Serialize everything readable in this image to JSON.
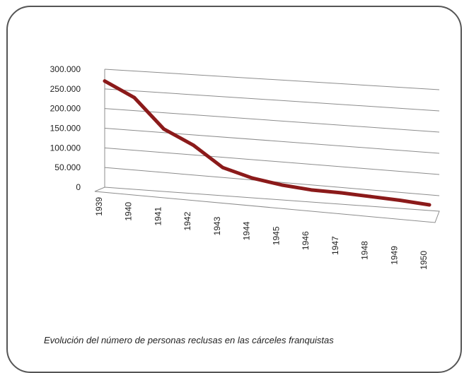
{
  "caption": "Evolución del número de personas reclusas en las cárceles franquistas",
  "colors": {
    "line": "#8b1a1a",
    "grid": "#8c8c8c",
    "frame": "#555555",
    "text": "#222222"
  },
  "chart_data": {
    "type": "line",
    "title": "",
    "xlabel": "",
    "ylabel": "",
    "categories": [
      "1939",
      "1940",
      "1941",
      "1942",
      "1943",
      "1944",
      "1945",
      "1946",
      "1947",
      "1948",
      "1949",
      "1950"
    ],
    "series": [
      {
        "values": [
          270000,
          233000,
          159000,
          124000,
          74000,
          54000,
          43000,
          37000,
          36000,
          33000,
          30000,
          25000
        ]
      }
    ],
    "y_ticks": [
      "300.000",
      "250.000",
      "200.000",
      "150.000",
      "100.000",
      "50.000",
      "0"
    ],
    "ylim": [
      0,
      300000
    ],
    "grid": true,
    "legend": "none",
    "style": "3d-perspective"
  }
}
